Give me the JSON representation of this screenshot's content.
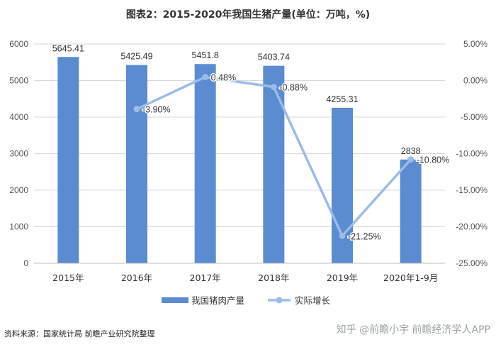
{
  "chart_data": {
    "type": "bar+line",
    "title": "图表2：2015-2020年我国生猪产量(单位：万吨，%)",
    "categories": [
      "2015年",
      "2016年",
      "2017年",
      "2018年",
      "2019年",
      "2020年1-9月"
    ],
    "series": [
      {
        "name": "我国猪肉产量",
        "type": "bar",
        "axis": "left",
        "values": [
          5645.41,
          5425.49,
          5451.8,
          5403.74,
          4255.31,
          2838
        ],
        "labels": [
          "5645.41",
          "5425.49",
          "5451.8",
          "5403.74",
          "4255.31",
          "2838"
        ],
        "color": "#5b8bd0"
      },
      {
        "name": "实际增长",
        "type": "line",
        "axis": "right",
        "values": [
          null,
          -3.9,
          0.48,
          -0.88,
          -21.25,
          -10.8
        ],
        "labels": [
          "",
          "-3.90%",
          "0.48%",
          "-0.88%",
          "-21.25%",
          "-10.80%"
        ],
        "color": "#9bbbe8"
      }
    ],
    "y_left": {
      "min": 0,
      "max": 6000,
      "ticks": [
        "0",
        "1000",
        "2000",
        "3000",
        "4000",
        "5000",
        "6000"
      ]
    },
    "y_right": {
      "min": -25,
      "max": 5,
      "ticks": [
        "-25.00%",
        "-20.00%",
        "-15.00%",
        "-10.00%",
        "-5.00%",
        "0.00%",
        "5.00%"
      ]
    },
    "legend_position": "bottom"
  },
  "footer": {
    "source": "资料来源：国家统计局 前瞻产业研究院整理",
    "brand": "知乎 @前瞻小宇 前瞻经济学人APP"
  }
}
